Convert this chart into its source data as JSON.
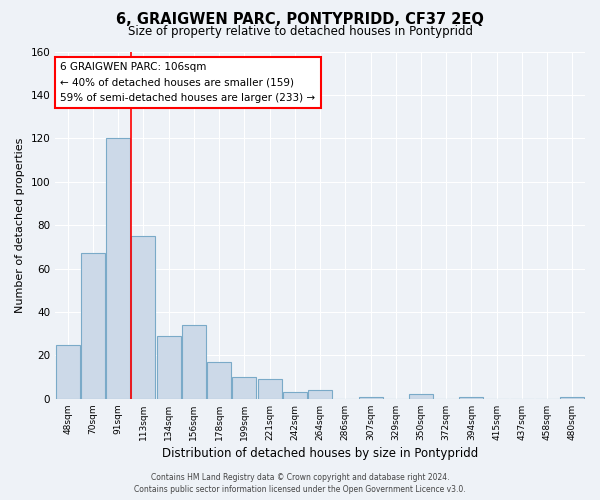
{
  "title": "6, GRAIGWEN PARC, PONTYPRIDD, CF37 2EQ",
  "subtitle": "Size of property relative to detached houses in Pontypridd",
  "xlabel": "Distribution of detached houses by size in Pontypridd",
  "ylabel": "Number of detached properties",
  "bar_color": "#ccd9e8",
  "bar_edge_color": "#7aaac8",
  "categories": [
    "48sqm",
    "70sqm",
    "91sqm",
    "113sqm",
    "134sqm",
    "156sqm",
    "178sqm",
    "199sqm",
    "221sqm",
    "242sqm",
    "264sqm",
    "286sqm",
    "307sqm",
    "329sqm",
    "350sqm",
    "372sqm",
    "394sqm",
    "415sqm",
    "437sqm",
    "458sqm",
    "480sqm"
  ],
  "values": [
    25,
    67,
    120,
    75,
    29,
    34,
    17,
    10,
    9,
    3,
    4,
    0,
    1,
    0,
    2,
    0,
    1,
    0,
    0,
    0,
    1
  ],
  "ylim": [
    0,
    160
  ],
  "yticks": [
    0,
    20,
    40,
    60,
    80,
    100,
    120,
    140,
    160
  ],
  "red_line_x": 2.5,
  "annotation_title": "6 GRAIGWEN PARC: 106sqm",
  "annotation_line1": "← 40% of detached houses are smaller (159)",
  "annotation_line2": "59% of semi-detached houses are larger (233) →",
  "footer_line1": "Contains HM Land Registry data © Crown copyright and database right 2024.",
  "footer_line2": "Contains public sector information licensed under the Open Government Licence v3.0.",
  "background_color": "#eef2f7",
  "plot_bg_color": "#eef2f7",
  "grid_color": "#ffffff"
}
